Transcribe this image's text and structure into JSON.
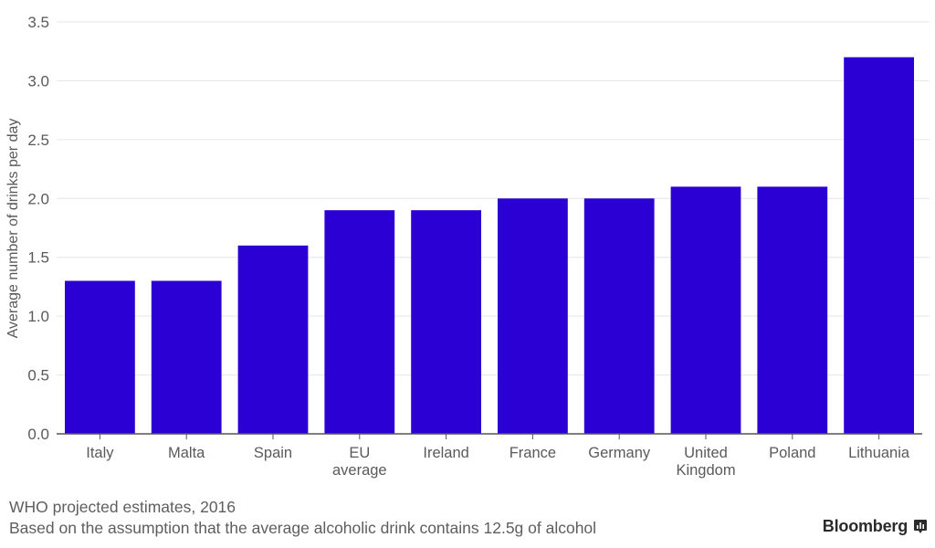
{
  "chart_data": {
    "type": "bar",
    "title": "",
    "xlabel": "",
    "ylabel": "Average number of drinks per day",
    "ylim": [
      0,
      3.5
    ],
    "yticks": [
      0.0,
      0.5,
      1.0,
      1.5,
      2.0,
      2.5,
      3.0,
      3.5
    ],
    "ytick_labels": [
      "0.0",
      "0.5",
      "1.0",
      "1.5",
      "2.0",
      "2.5",
      "3.0",
      "3.5"
    ],
    "grid": true,
    "categories": [
      "Italy",
      "Malta",
      "Spain",
      "EU average",
      "Ireland",
      "France",
      "Germany",
      "United Kingdom",
      "Poland",
      "Lithuania"
    ],
    "category_label_lines": [
      [
        "Italy"
      ],
      [
        "Malta"
      ],
      [
        "Spain"
      ],
      [
        "EU",
        "average"
      ],
      [
        "Ireland"
      ],
      [
        "France"
      ],
      [
        "Germany"
      ],
      [
        "United",
        "Kingdom"
      ],
      [
        "Poland"
      ],
      [
        "Lithuania"
      ]
    ],
    "values": [
      1.3,
      1.3,
      1.6,
      1.9,
      1.9,
      2.0,
      2.0,
      2.1,
      2.1,
      3.2
    ],
    "bar_color": "#2b00d4",
    "legend": null
  },
  "footnotes": {
    "source": "WHO projected estimates, 2016",
    "note": "Based on the assumption that the average alcoholic drink contains 12.5g of alcohol"
  },
  "brand": {
    "name": "Bloomberg",
    "icon": "bloomberg-chart-icon"
  },
  "colors": {
    "bar": "#2b00d4",
    "grid": "#e6e6e6",
    "axis": "#555555",
    "text": "#5a5a5a"
  }
}
